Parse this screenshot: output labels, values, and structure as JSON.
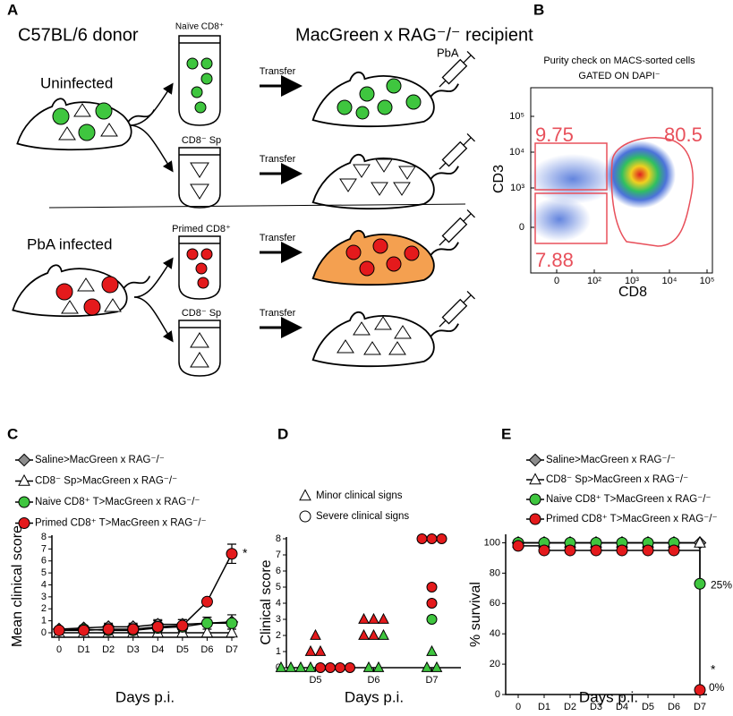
{
  "panel_a": {
    "label": "A",
    "donor_title": "C57BL/6 donor",
    "recipient_title": "MacGreen x RAG⁻/⁻ recipient",
    "uninfected": "Uninfected",
    "infected": "PbA infected",
    "tubes": [
      "Naïve CD8⁺",
      "CD8⁻ Sp",
      "Primed CD8⁺",
      "CD8⁻ Sp"
    ],
    "transfer": [
      "Transfer",
      "Transfer",
      "Transfer",
      "Transfer"
    ],
    "injection": "PbA"
  },
  "panel_b": {
    "label": "B",
    "title": "Purity check on MACS-sorted cells",
    "subtitle": "GATED ON DAPI⁻",
    "xlabel": "CD8",
    "ylabel": "CD3",
    "xticks": [
      0,
      {
        "value": 100,
        "label": "10²"
      },
      {
        "value": 1000,
        "label": "10³"
      },
      {
        "value": 10000,
        "label": "10⁴"
      },
      {
        "value": 100000,
        "label": "10⁵"
      }
    ],
    "yticks": [
      0,
      {
        "value": 1000,
        "label": "10³"
      },
      {
        "value": 10000,
        "label": "10⁴"
      },
      {
        "value": 100000,
        "label": "10⁵"
      }
    ],
    "gates": [
      9.75,
      80.5,
      7.88
    ]
  },
  "chart_data": [
    {
      "type": "line",
      "label": "C",
      "ylabel": "Mean clinical score",
      "xlabel": "Days p.i.",
      "categories": [
        "0",
        "D1",
        "D2",
        "D3",
        "D4",
        "D5",
        "D6",
        "D7"
      ],
      "ylim": [
        0,
        8
      ],
      "yticks": [
        0,
        1,
        2,
        3,
        4,
        5,
        6,
        7,
        8
      ],
      "series": [
        {
          "name": "Saline>MacGreen x RAG⁻/⁻",
          "marker": "diamond",
          "color": "#8c8c8c",
          "values": [
            0.3,
            0.4,
            0.5,
            0.5,
            0.7,
            0.7,
            0.8,
            0.9
          ],
          "errors": [
            0.1,
            0.2,
            0.3,
            0.3,
            0.4,
            0.4,
            0.5,
            0.6
          ]
        },
        {
          "name": "CD8⁻ Sp>MacGreen x RAG⁻/⁻",
          "marker": "triangle",
          "color": "#ffffff",
          "values": [
            0,
            0,
            0,
            0,
            0,
            0,
            0,
            0
          ]
        },
        {
          "name": "Naive CD8⁺ T>MacGreen x RAG⁻/⁻",
          "marker": "circle",
          "color": "#3fc63f",
          "values": [
            0.2,
            0.3,
            0.2,
            0.2,
            0.4,
            0.5,
            0.8,
            0.8
          ]
        },
        {
          "name": "Primed CD8⁺ T>MacGreen x RAG⁻/⁻",
          "marker": "circle",
          "color": "#e41a1c",
          "values": [
            0.2,
            0.2,
            0.3,
            0.3,
            0.5,
            0.6,
            2.6,
            6.6
          ],
          "errors": [
            0.1,
            0.2,
            0.4,
            0.4,
            0.5,
            0.5,
            0.2,
            0.8
          ]
        }
      ],
      "annotations": [
        "*"
      ]
    },
    {
      "type": "scatter",
      "label": "D",
      "ylabel": "Clinical score",
      "xlabel": "Days p.i.",
      "categories": [
        "D5",
        "D6",
        "D7"
      ],
      "ylim": [
        0,
        8
      ],
      "yticks": [
        0,
        1,
        2,
        3,
        4,
        5,
        6,
        7,
        8
      ],
      "legend": [
        {
          "name": "Minor clinical signs",
          "marker": "triangle"
        },
        {
          "name": "Severe clinical signs",
          "marker": "circle"
        }
      ],
      "series": [
        {
          "marker": "triangle",
          "color": "#e41a1c",
          "x": [
            "D5",
            "D5",
            "D5",
            "D6",
            "D6",
            "D6",
            "D6",
            "D6"
          ],
          "values": [
            2,
            1,
            1,
            3,
            3,
            3,
            2,
            2
          ]
        },
        {
          "marker": "triangle",
          "color": "#3fc63f",
          "x": [
            "D5",
            "D5",
            "D5",
            "D5",
            "D6",
            "D6",
            "D6",
            "D7",
            "D7",
            "D7"
          ],
          "values": [
            0,
            0,
            0,
            0,
            2,
            0,
            0,
            1,
            0,
            0
          ]
        },
        {
          "marker": "circle",
          "color": "#e41a1c",
          "x": [
            "D5",
            "D5",
            "D5",
            "D5",
            "D7",
            "D7",
            "D7",
            "D7",
            "D7"
          ],
          "values": [
            0,
            0,
            0,
            0,
            8,
            8,
            8,
            5,
            4
          ]
        },
        {
          "marker": "circle",
          "color": "#3fc63f",
          "x": [
            "D7"
          ],
          "values": [
            3
          ]
        }
      ]
    },
    {
      "type": "survival",
      "label": "E",
      "ylabel": "% survival",
      "xlabel": "Days p.i.",
      "categories": [
        "0",
        "D1",
        "D2",
        "D3",
        "D4",
        "D5",
        "D6",
        "D7"
      ],
      "ylim": [
        0,
        105
      ],
      "yticks": [
        0,
        20,
        40,
        60,
        80,
        100
      ],
      "series": [
        {
          "name": "Saline>MacGreen x RAG⁻/⁻",
          "marker": "diamond",
          "color": "#8c8c8c",
          "values": [
            100,
            100,
            100,
            100,
            100,
            100,
            100,
            100
          ]
        },
        {
          "name": "CD8⁻ Sp>MacGreen x RAG⁻/⁻",
          "marker": "triangle",
          "color": "#ffffff",
          "values": [
            100,
            100,
            100,
            100,
            100,
            100,
            100,
            100
          ]
        },
        {
          "name": "Naive CD8⁺ T>MacGreen x RAG⁻/⁻",
          "marker": "circle",
          "color": "#3fc63f",
          "values": [
            100,
            100,
            100,
            100,
            100,
            100,
            100,
            73
          ]
        },
        {
          "name": "Primed CD8⁺ T>MacGreen x RAG⁻/⁻",
          "marker": "circle",
          "color": "#e41a1c",
          "values": [
            98,
            95,
            95,
            95,
            95,
            95,
            95,
            3
          ]
        }
      ],
      "annotations": [
        "25%",
        "0%",
        "*"
      ]
    }
  ]
}
